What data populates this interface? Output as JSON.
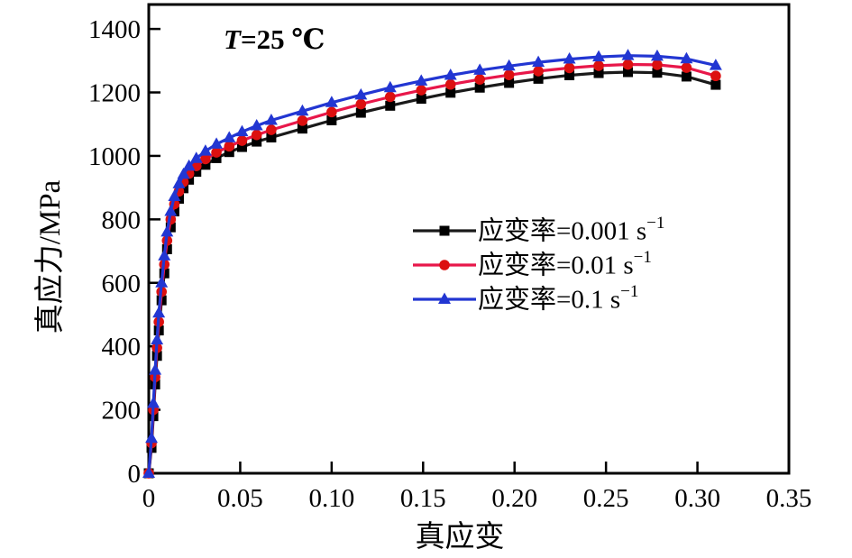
{
  "figure_title": "true stress - true strain curves at T=25C for three strain rates",
  "annotation": {
    "var": "T",
    "rest": "=25 ℃"
  },
  "chart_data": {
    "type": "line",
    "title_annotation": "T=25 ℃",
    "xlabel": "真应变",
    "ylabel": "真应力/MPa",
    "xlim": [
      0,
      0.35
    ],
    "ylim": [
      0,
      1477
    ],
    "grid": false,
    "legend_position": "center-right",
    "x_ticks": {
      "values": [
        0,
        0.05,
        0.1,
        0.15,
        0.2,
        0.25,
        0.3,
        0.35
      ],
      "labels": [
        "0",
        "0.05",
        "0.10",
        "0.15",
        "0.20",
        "0.25",
        "0.30",
        "0.35"
      ]
    },
    "y_ticks": {
      "values": [
        0,
        200,
        400,
        600,
        800,
        1000,
        1200,
        1400
      ],
      "labels": [
        "0",
        "200",
        "400",
        "600",
        "800",
        "1000",
        "1200",
        "1400"
      ]
    },
    "series": [
      {
        "name": "应变率=0.001 s⁻¹",
        "label_base": "应变率=0.001 s",
        "label_sup": "−1",
        "marker": "square",
        "line_color": "#1a1a1a",
        "marker_color": "#000000",
        "points": [
          [
            0.0,
            0
          ],
          [
            0.0015,
            80
          ],
          [
            0.0025,
            180
          ],
          [
            0.0035,
            280
          ],
          [
            0.0045,
            370
          ],
          [
            0.0055,
            450
          ],
          [
            0.007,
            545
          ],
          [
            0.0085,
            630
          ],
          [
            0.01,
            706
          ],
          [
            0.012,
            775
          ],
          [
            0.014,
            825
          ],
          [
            0.0165,
            865
          ],
          [
            0.019,
            898
          ],
          [
            0.022,
            925
          ],
          [
            0.026,
            950
          ],
          [
            0.031,
            972
          ],
          [
            0.037,
            993
          ],
          [
            0.044,
            1012
          ],
          [
            0.051,
            1028
          ],
          [
            0.059,
            1045
          ],
          [
            0.067,
            1058
          ],
          [
            0.084,
            1086
          ],
          [
            0.1,
            1112
          ],
          [
            0.116,
            1136
          ],
          [
            0.132,
            1158
          ],
          [
            0.149,
            1180
          ],
          [
            0.165,
            1199
          ],
          [
            0.181,
            1215
          ],
          [
            0.197,
            1230
          ],
          [
            0.213,
            1243
          ],
          [
            0.23,
            1254
          ],
          [
            0.246,
            1261
          ],
          [
            0.262,
            1264
          ],
          [
            0.278,
            1262
          ],
          [
            0.294,
            1250
          ],
          [
            0.31,
            1224
          ]
        ]
      },
      {
        "name": "应变率=0.01 s⁻¹",
        "label_base": "应变率=0.01 s",
        "label_sup": "−1",
        "marker": "circle",
        "line_color": "#e8174a",
        "marker_color": "#dc1010",
        "points": [
          [
            0.0,
            0
          ],
          [
            0.0015,
            95
          ],
          [
            0.0025,
            200
          ],
          [
            0.0035,
            303
          ],
          [
            0.0045,
            395
          ],
          [
            0.0055,
            477
          ],
          [
            0.007,
            572
          ],
          [
            0.0085,
            658
          ],
          [
            0.01,
            733
          ],
          [
            0.012,
            800
          ],
          [
            0.014,
            848
          ],
          [
            0.0165,
            888
          ],
          [
            0.019,
            918
          ],
          [
            0.022,
            944
          ],
          [
            0.026,
            968
          ],
          [
            0.031,
            990
          ],
          [
            0.037,
            1011
          ],
          [
            0.044,
            1030
          ],
          [
            0.051,
            1048
          ],
          [
            0.059,
            1066
          ],
          [
            0.067,
            1082
          ],
          [
            0.084,
            1111
          ],
          [
            0.1,
            1138
          ],
          [
            0.116,
            1163
          ],
          [
            0.132,
            1186
          ],
          [
            0.149,
            1207
          ],
          [
            0.165,
            1225
          ],
          [
            0.181,
            1241
          ],
          [
            0.197,
            1255
          ],
          [
            0.213,
            1267
          ],
          [
            0.23,
            1277
          ],
          [
            0.246,
            1284
          ],
          [
            0.262,
            1288
          ],
          [
            0.278,
            1287
          ],
          [
            0.294,
            1278
          ],
          [
            0.31,
            1252
          ]
        ]
      },
      {
        "name": "应变率=0.1 s⁻¹",
        "label_base": "应变率=0.1 s",
        "label_sup": "−1",
        "marker": "triangle",
        "line_color": "#2236d2",
        "marker_color": "#2236d2",
        "points": [
          [
            0.0,
            0
          ],
          [
            0.0015,
            110
          ],
          [
            0.0025,
            220
          ],
          [
            0.0035,
            325
          ],
          [
            0.0045,
            420
          ],
          [
            0.0055,
            505
          ],
          [
            0.007,
            600
          ],
          [
            0.0085,
            685
          ],
          [
            0.01,
            760
          ],
          [
            0.012,
            825
          ],
          [
            0.014,
            872
          ],
          [
            0.0165,
            912
          ],
          [
            0.019,
            942
          ],
          [
            0.022,
            968
          ],
          [
            0.026,
            992
          ],
          [
            0.031,
            1015
          ],
          [
            0.037,
            1037
          ],
          [
            0.044,
            1057
          ],
          [
            0.051,
            1076
          ],
          [
            0.059,
            1095
          ],
          [
            0.067,
            1112
          ],
          [
            0.084,
            1141
          ],
          [
            0.1,
            1168
          ],
          [
            0.116,
            1192
          ],
          [
            0.132,
            1215
          ],
          [
            0.149,
            1236
          ],
          [
            0.165,
            1254
          ],
          [
            0.181,
            1270
          ],
          [
            0.197,
            1283
          ],
          [
            0.213,
            1295
          ],
          [
            0.23,
            1305
          ],
          [
            0.246,
            1312
          ],
          [
            0.262,
            1316
          ],
          [
            0.278,
            1314
          ],
          [
            0.294,
            1306
          ],
          [
            0.31,
            1285
          ]
        ]
      }
    ]
  }
}
